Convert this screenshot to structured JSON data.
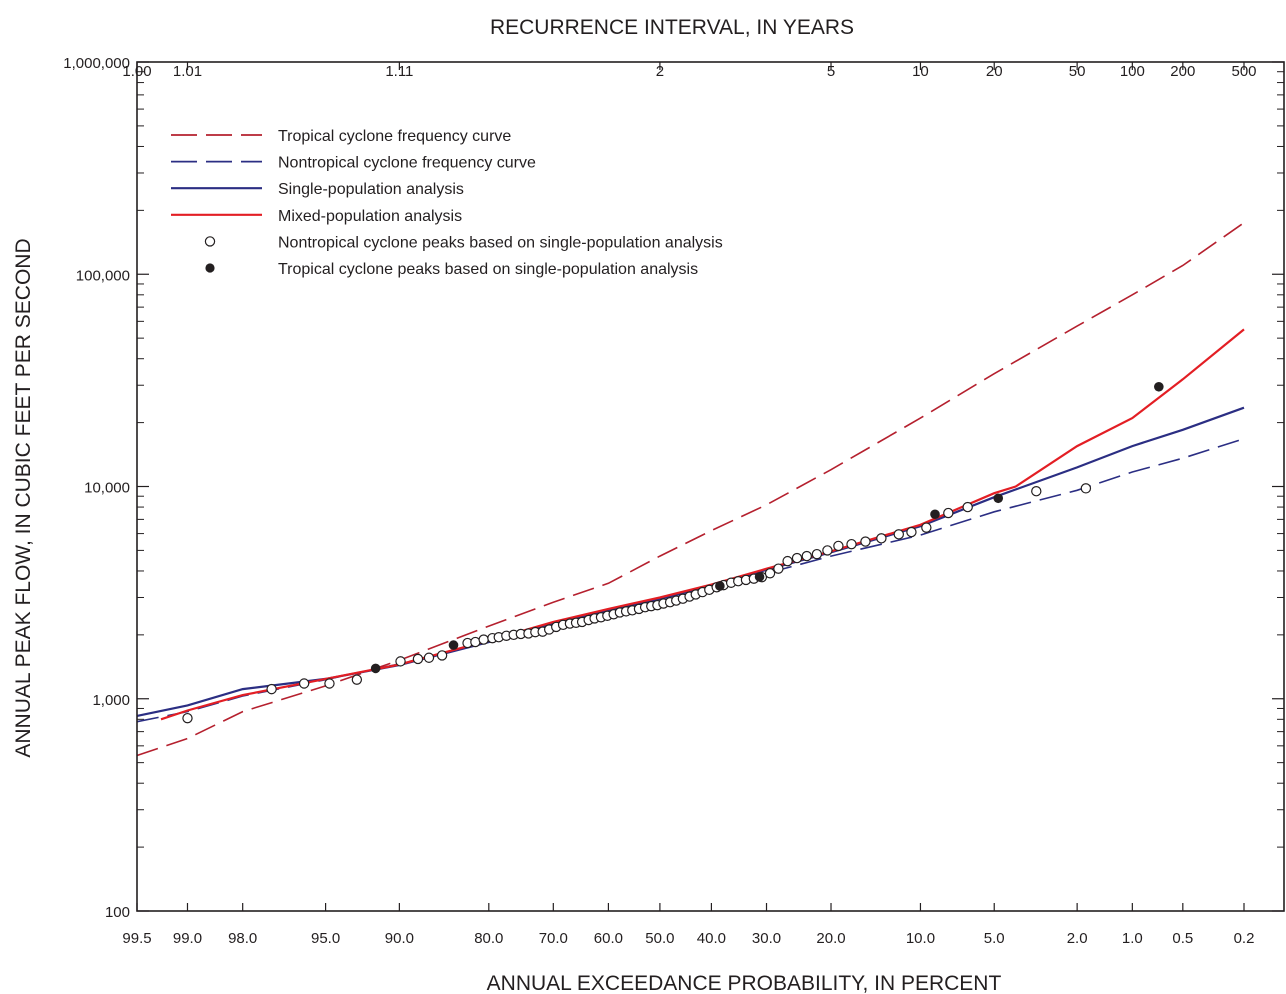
{
  "chart_data": {
    "type": "line",
    "title": "",
    "x_top_label": "RECURRENCE INTERVAL, IN YEARS",
    "xlabel": "ANNUAL EXCEEDANCE PROBABILITY, IN PERCENT",
    "ylabel": "ANNUAL PEAK FLOW, IN CUBIC FEET PER SECOND",
    "x_scale": "normal-probability",
    "y_scale": "log",
    "xlim": [
      99.5,
      0.2
    ],
    "ylim": [
      100,
      1000000
    ],
    "x_ticks": [
      {
        "p": 99.5,
        "label": "99.5"
      },
      {
        "p": 99.0,
        "label": "99.0"
      },
      {
        "p": 98.0,
        "label": "98.0"
      },
      {
        "p": 95.0,
        "label": "95.0"
      },
      {
        "p": 90.0,
        "label": "90.0"
      },
      {
        "p": 80.0,
        "label": "80.0"
      },
      {
        "p": 70.0,
        "label": "70.0"
      },
      {
        "p": 60.0,
        "label": "60.0"
      },
      {
        "p": 50.0,
        "label": "50.0"
      },
      {
        "p": 40.0,
        "label": "40.0"
      },
      {
        "p": 30.0,
        "label": "30.0"
      },
      {
        "p": 20.0,
        "label": "20.0"
      },
      {
        "p": 10.0,
        "label": "10.0"
      },
      {
        "p": 5.0,
        "label": "5.0"
      },
      {
        "p": 2.0,
        "label": "2.0"
      },
      {
        "p": 1.0,
        "label": "1.0"
      },
      {
        "p": 0.5,
        "label": "0.5"
      },
      {
        "p": 0.2,
        "label": "0.2"
      }
    ],
    "x_top_ticks": [
      {
        "label": "1.00",
        "years": 1.0,
        "p": 99.5
      },
      {
        "label": "1.01",
        "years": 1.01,
        "p": 99.0
      },
      {
        "label": "1.11",
        "years": 1.11,
        "p": 90.0
      },
      {
        "label": "2",
        "years": 2,
        "p": 50.0
      },
      {
        "label": "5",
        "years": 5,
        "p": 20.0
      },
      {
        "label": "10",
        "years": 10,
        "p": 10.0
      },
      {
        "label": "20",
        "years": 20,
        "p": 5.0
      },
      {
        "label": "50",
        "years": 50,
        "p": 2.0
      },
      {
        "label": "100",
        "years": 100,
        "p": 1.0
      },
      {
        "label": "200",
        "years": 200,
        "p": 0.5
      },
      {
        "label": "500",
        "years": 500,
        "p": 0.2
      }
    ],
    "y_ticks": [
      {
        "v": 100,
        "label": "100"
      },
      {
        "v": 1000,
        "label": "1,000"
      },
      {
        "v": 10000,
        "label": "10,000"
      },
      {
        "v": 100000,
        "label": "100,000"
      },
      {
        "v": 1000000,
        "label": "1,000,000"
      }
    ],
    "series": [
      {
        "name": "Tropical cyclone frequency curve",
        "style": "dashed",
        "color": "#b5202e",
        "points": [
          [
            99.5,
            540
          ],
          [
            99.0,
            650
          ],
          [
            98.0,
            870
          ],
          [
            95.0,
            1150
          ],
          [
            90.0,
            1520
          ],
          [
            80.0,
            2200
          ],
          [
            70.0,
            2850
          ],
          [
            60.0,
            3500
          ],
          [
            50.0,
            4700
          ],
          [
            40.0,
            6200
          ],
          [
            30.0,
            8200
          ],
          [
            20.0,
            12000
          ],
          [
            10.0,
            21000
          ],
          [
            5.0,
            34000
          ],
          [
            2.0,
            57000
          ],
          [
            1.0,
            80000
          ],
          [
            0.5,
            110000
          ],
          [
            0.2,
            175000
          ]
        ]
      },
      {
        "name": "Nontropical cyclone frequency curve",
        "style": "dashed",
        "color": "#2b2e83",
        "points": [
          [
            99.5,
            780
          ],
          [
            99.0,
            870
          ],
          [
            98.0,
            1030
          ],
          [
            95.0,
            1230
          ],
          [
            90.0,
            1460
          ],
          [
            80.0,
            1850
          ],
          [
            70.0,
            2200
          ],
          [
            60.0,
            2500
          ],
          [
            50.0,
            2830
          ],
          [
            40.0,
            3250
          ],
          [
            30.0,
            3900
          ],
          [
            20.0,
            4700
          ],
          [
            10.0,
            5900
          ],
          [
            5.0,
            7600
          ],
          [
            2.0,
            9600
          ],
          [
            1.0,
            11700
          ],
          [
            0.5,
            13600
          ],
          [
            0.2,
            16800
          ]
        ]
      },
      {
        "name": "Single-population analysis",
        "style": "solid",
        "color": "#2b2e83",
        "points": [
          [
            99.5,
            830
          ],
          [
            99.0,
            930
          ],
          [
            98.0,
            1110
          ],
          [
            95.0,
            1240
          ],
          [
            90.0,
            1440
          ],
          [
            80.0,
            1850
          ],
          [
            70.0,
            2250
          ],
          [
            60.0,
            2600
          ],
          [
            50.0,
            2950
          ],
          [
            40.0,
            3400
          ],
          [
            30.0,
            4050
          ],
          [
            20.0,
            4900
          ],
          [
            10.0,
            6500
          ],
          [
            5.0,
            8900
          ],
          [
            2.0,
            12300
          ],
          [
            1.0,
            15500
          ],
          [
            0.5,
            18500
          ],
          [
            0.2,
            23500
          ]
        ]
      },
      {
        "name": "Mixed-population analysis",
        "style": "solid",
        "color": "#e31e24",
        "points": [
          [
            99.3,
            800
          ],
          [
            99.0,
            880
          ],
          [
            98.0,
            1040
          ],
          [
            95.0,
            1240
          ],
          [
            90.0,
            1450
          ],
          [
            80.0,
            1880
          ],
          [
            70.0,
            2300
          ],
          [
            60.0,
            2650
          ],
          [
            50.0,
            3000
          ],
          [
            40.0,
            3450
          ],
          [
            30.0,
            4100
          ],
          [
            20.0,
            4950
          ],
          [
            10.0,
            6600
          ],
          [
            5.0,
            9300
          ],
          [
            4.0,
            10000
          ],
          [
            2.0,
            15500
          ],
          [
            1.0,
            21000
          ],
          [
            0.5,
            32000
          ],
          [
            0.2,
            55000
          ]
        ]
      }
    ],
    "points_nontropical": {
      "name": "Nontropical cyclone peaks based on single-population analysis",
      "marker": "open-circle",
      "points": [
        [
          99.0,
          810
        ],
        [
          97.2,
          1110
        ],
        [
          96.0,
          1180
        ],
        [
          94.8,
          1180
        ],
        [
          93.2,
          1230
        ],
        [
          89.9,
          1500
        ],
        [
          88.3,
          1540
        ],
        [
          87.2,
          1560
        ],
        [
          85.8,
          1600
        ],
        [
          82.8,
          1830
        ],
        [
          81.8,
          1850
        ],
        [
          80.7,
          1900
        ],
        [
          79.5,
          1930
        ],
        [
          78.6,
          1950
        ],
        [
          77.5,
          1980
        ],
        [
          76.4,
          2000
        ],
        [
          75.3,
          2020
        ],
        [
          74.1,
          2030
        ],
        [
          73.0,
          2060
        ],
        [
          71.8,
          2070
        ],
        [
          70.7,
          2120
        ],
        [
          69.5,
          2180
        ],
        [
          68.3,
          2230
        ],
        [
          67.1,
          2260
        ],
        [
          66.0,
          2280
        ],
        [
          64.9,
          2300
        ],
        [
          63.7,
          2350
        ],
        [
          62.6,
          2390
        ],
        [
          61.4,
          2420
        ],
        [
          60.2,
          2460
        ],
        [
          59.0,
          2500
        ],
        [
          57.8,
          2550
        ],
        [
          56.6,
          2580
        ],
        [
          55.4,
          2610
        ],
        [
          54.1,
          2650
        ],
        [
          52.9,
          2700
        ],
        [
          51.7,
          2730
        ],
        [
          50.5,
          2760
        ],
        [
          49.3,
          2810
        ],
        [
          48.0,
          2850
        ],
        [
          46.8,
          2900
        ],
        [
          45.5,
          2960
        ],
        [
          44.2,
          3030
        ],
        [
          43.0,
          3100
        ],
        [
          41.7,
          3180
        ],
        [
          40.4,
          3260
        ],
        [
          39.0,
          3350
        ],
        [
          37.7,
          3430
        ],
        [
          36.3,
          3520
        ],
        [
          35.0,
          3580
        ],
        [
          33.6,
          3630
        ],
        [
          32.2,
          3680
        ],
        [
          30.8,
          3740
        ],
        [
          29.4,
          3900
        ],
        [
          28.0,
          4100
        ],
        [
          26.5,
          4450
        ],
        [
          25.0,
          4600
        ],
        [
          23.5,
          4700
        ],
        [
          22.0,
          4800
        ],
        [
          20.5,
          5000
        ],
        [
          19.0,
          5250
        ],
        [
          17.3,
          5350
        ],
        [
          15.6,
          5500
        ],
        [
          13.8,
          5700
        ],
        [
          12.0,
          5950
        ],
        [
          10.8,
          6100
        ],
        [
          9.5,
          6400
        ],
        [
          7.8,
          7500
        ],
        [
          6.5,
          8000
        ],
        [
          3.2,
          9500
        ],
        [
          1.8,
          9800
        ]
      ]
    },
    "points_tropical": {
      "name": "Tropical cyclone peaks based on single-population analysis",
      "marker": "filled-circle",
      "points": [
        [
          91.9,
          1390
        ],
        [
          84.5,
          1790
        ],
        [
          38.4,
          3400
        ],
        [
          31.2,
          3750
        ],
        [
          8.8,
          7400
        ],
        [
          4.8,
          8800
        ],
        [
          0.7,
          29500
        ]
      ]
    },
    "legend": {
      "position": "top-left",
      "entries": [
        {
          "label": "Tropical cyclone frequency curve",
          "swatch": "dashed",
          "color": "#b5202e"
        },
        {
          "label": "Nontropical cyclone frequency curve",
          "swatch": "dashed",
          "color": "#2b2e83"
        },
        {
          "label": "Single-population analysis",
          "swatch": "solid",
          "color": "#2b2e83"
        },
        {
          "label": "Mixed-population analysis",
          "swatch": "solid",
          "color": "#e31e24"
        },
        {
          "label": "Nontropical cyclone peaks based on single-population analysis",
          "swatch": "open-circle",
          "color": "#231f20"
        },
        {
          "label": "Tropical cyclone peaks based on single-population analysis",
          "swatch": "filled-circle",
          "color": "#231f20"
        }
      ]
    },
    "grid": false
  }
}
